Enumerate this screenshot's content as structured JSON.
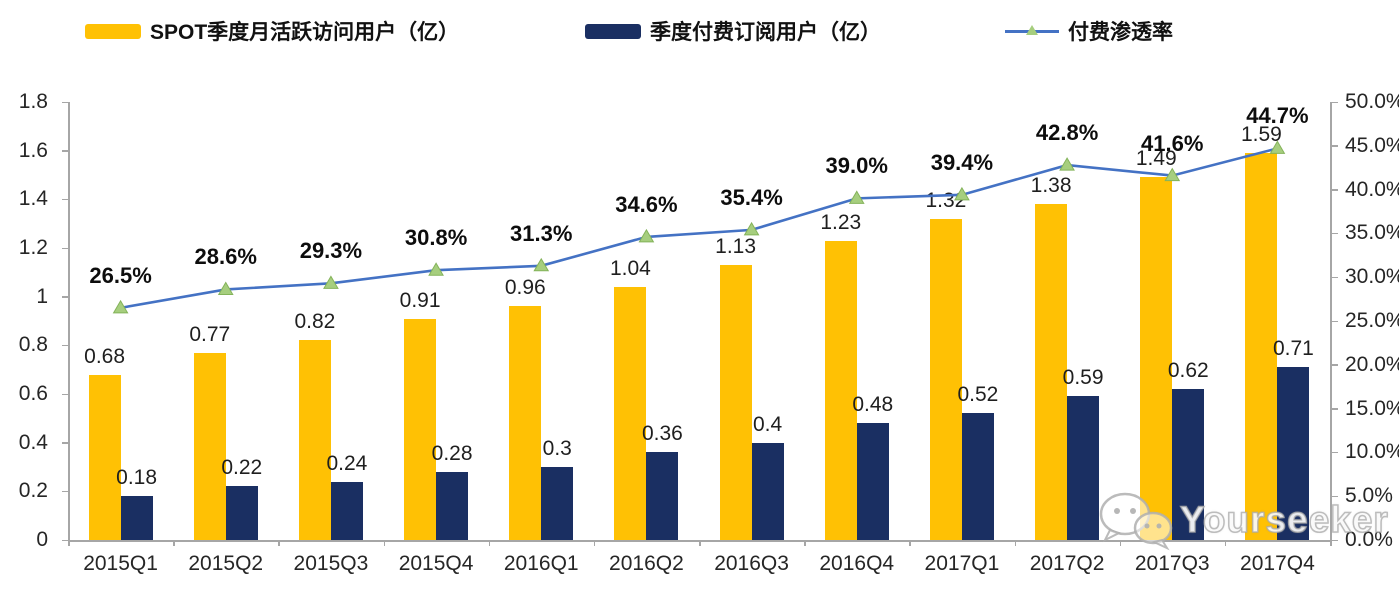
{
  "legend": {
    "items": [
      {
        "label": "SPOT季度月活跃访问用户（亿）",
        "type": "bar"
      },
      {
        "label": "季度付费订阅用户（亿）",
        "type": "bar"
      },
      {
        "label": "付费渗透率",
        "type": "line"
      }
    ]
  },
  "watermark": {
    "brand": "Yourseeker"
  },
  "colors": {
    "mau_bar": "#FFC104",
    "subs_bar": "#1A2F62",
    "line": "#4472C4",
    "marker_fill": "#A6CE7E",
    "marker_edge": "#84B35A",
    "axis": "#A6A6A6"
  },
  "chart_data": {
    "type": "bar",
    "subtype": "combo-bar-line",
    "title": "",
    "xlabel": "",
    "ylabel": "",
    "grid": false,
    "legend_position": "top",
    "categories": [
      "2015Q1",
      "2015Q2",
      "2015Q3",
      "2015Q4",
      "2016Q1",
      "2016Q2",
      "2016Q3",
      "2016Q4",
      "2017Q1",
      "2017Q2",
      "2017Q3",
      "2017Q4"
    ],
    "series": [
      {
        "name": "SPOT季度月活跃访问用户（亿）",
        "type": "bar",
        "axis": "left",
        "color": "#FFC104",
        "values": [
          0.68,
          0.77,
          0.82,
          0.91,
          0.96,
          1.04,
          1.13,
          1.23,
          1.32,
          1.38,
          1.49,
          1.59
        ],
        "labels": [
          "0.68",
          "0.77",
          "0.82",
          "0.91",
          "0.96",
          "1.04",
          "1.13",
          "1.23",
          "1.32",
          "1.38",
          "1.49",
          "1.59"
        ]
      },
      {
        "name": "季度付费订阅用户（亿）",
        "type": "bar",
        "axis": "left",
        "color": "#1A2F62",
        "values": [
          0.18,
          0.22,
          0.24,
          0.28,
          0.3,
          0.36,
          0.4,
          0.48,
          0.52,
          0.59,
          0.62,
          0.71
        ],
        "labels": [
          "0.18",
          "0.22",
          "0.24",
          "0.28",
          "0.3",
          "0.36",
          "0.4",
          "0.48",
          "0.52",
          "0.59",
          "0.62",
          "0.71"
        ]
      },
      {
        "name": "付费渗透率",
        "type": "line",
        "axis": "right",
        "color": "#4472C4",
        "values": [
          26.5,
          28.6,
          29.3,
          30.8,
          31.3,
          34.6,
          35.4,
          39.0,
          39.4,
          42.8,
          41.6,
          44.7
        ],
        "labels": [
          "26.5%",
          "28.6%",
          "29.3%",
          "30.8%",
          "31.3%",
          "34.6%",
          "35.4%",
          "39.0%",
          "39.4%",
          "42.8%",
          "41.6%",
          "44.7%"
        ]
      }
    ],
    "left_axis": {
      "min": 0,
      "max": 1.8,
      "tick_labels": [
        "0",
        "0.2",
        "0.4",
        "0.6",
        "0.8",
        "1",
        "1.2",
        "1.4",
        "1.6",
        "1.8"
      ]
    },
    "right_axis": {
      "min": 0,
      "max": 50,
      "tick_labels": [
        "0.0%",
        "5.0%",
        "10.0%",
        "15.0%",
        "20.0%",
        "25.0%",
        "30.0%",
        "35.0%",
        "40.0%",
        "45.0%",
        "50.0%"
      ]
    }
  }
}
